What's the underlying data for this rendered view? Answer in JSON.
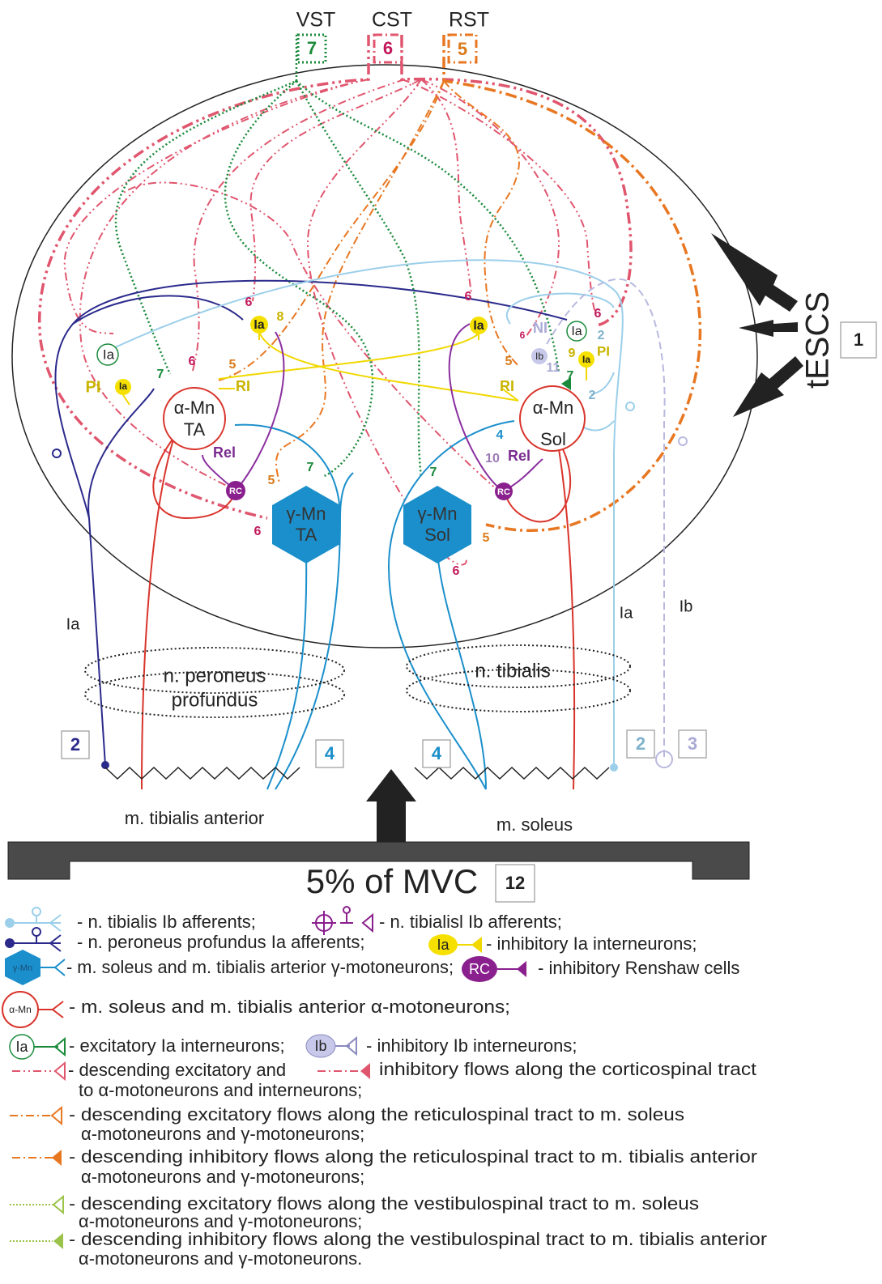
{
  "tracts": [
    {
      "name": "VST",
      "number": "7"
    },
    {
      "name": "CST",
      "number": "6"
    },
    {
      "name": "RST",
      "number": "5"
    }
  ],
  "stimulation": {
    "label": "tESCS",
    "number": "1"
  },
  "neurons": {
    "alpha_ta": [
      "α-Mn",
      "TA"
    ],
    "alpha_sol": [
      "α-Mn",
      "Sol"
    ],
    "gamma_ta": [
      "γ-Mn",
      "TA"
    ],
    "gamma_sol": [
      "γ-Mn",
      "Sol"
    ]
  },
  "labels": [
    "6",
    "8",
    "Ia",
    "Ia",
    "PI",
    "Ia",
    "7",
    "6",
    "5",
    "RI",
    "Rel",
    "RC",
    "5",
    "7",
    "6",
    "6",
    "Ia",
    "NI",
    "Ia",
    "6",
    "2",
    "6",
    "Ib",
    "9",
    "Ia",
    "PI",
    "11",
    "7",
    "5",
    "RI",
    "2",
    "4",
    "10",
    "Rel",
    "RC",
    "7",
    "5",
    "6"
  ],
  "afferents": [
    "Ia",
    "Ia",
    "Ib"
  ],
  "nerves": [
    [
      "n. peroneus",
      "profundus"
    ],
    [
      "n. tibialis"
    ]
  ],
  "boxes": [
    "2",
    "4",
    "4",
    "2",
    "3"
  ],
  "muscles": [
    "m. tibialis anterior",
    "m. soleus"
  ],
  "load": {
    "label": "5% of MVC",
    "number": "12"
  },
  "legend": {
    "icons": [
      "γ-Mn",
      "RC",
      "α-Mn",
      "Ia",
      "Ib",
      "Ia"
    ],
    "lines": [
      "- n. tibialis Ib afferents;",
      "- n. tibialisl Ib afferents;",
      "- n. peroneus profundus Ia afferents;",
      "- inhibitory Ia interneurons;",
      "- m. soleus and m. tibialis arterior γ-motoneurons;",
      "- inhibitory Renshaw cells",
      "- m. soleus and m. tibialis anterior α-motoneurons;",
      "- excitatory Ia interneurons;",
      "- inhibitory Ib interneurons;",
      "- descending excitatory and",
      "inhibitory flows along the corticospinal tract",
      "to α-motoneurons and interneurons;",
      "- descending excitatory flows along the reticulospinal tract to m. soleus",
      "α-motoneurons and γ-motoneurons;",
      "- descending inhibitory flows along the reticulospinal tract to m. tibialis anterior",
      "α-motoneurons and γ-motoneurons;",
      "- descending excitatory flows along the vestibulospinal tract to m. soleus",
      "α-motoneurons and γ-motoneurons;",
      "- descending inhibitory flows along the vestibulospinal tract to m. tibialis anterior",
      "α-motoneurons and γ-motoneurons."
    ]
  }
}
